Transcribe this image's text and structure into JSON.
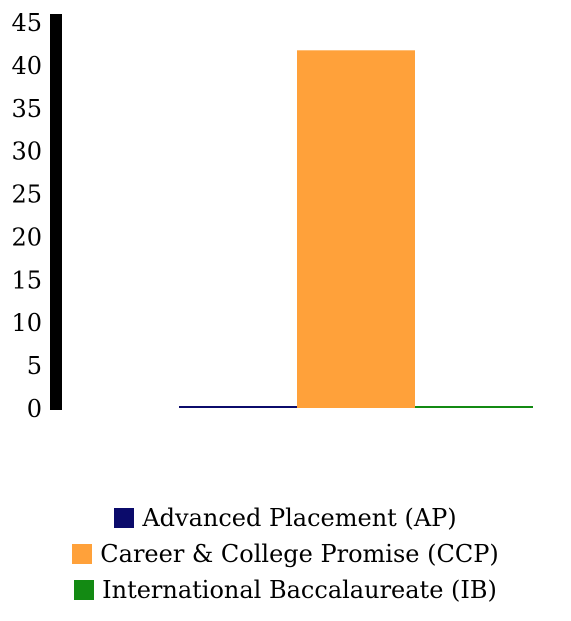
{
  "chart_data": {
    "type": "bar",
    "title": "",
    "xlabel": "",
    "ylabel": "",
    "ylim": [
      0,
      45
    ],
    "yticks": [
      "0",
      "5",
      "10",
      "15",
      "20",
      "25",
      "30",
      "35",
      "40",
      "45"
    ],
    "grid": false,
    "legend_position": "bottom",
    "series": [
      {
        "name": "Advanced Placement (AP)",
        "value": 0,
        "color": "#0b0b6b"
      },
      {
        "name": "Career & College Promise (CCP)",
        "value": 41.7,
        "color": "#ffa13a"
      },
      {
        "name": "International Baccalaureate (IB)",
        "value": 0,
        "color": "#138a13"
      }
    ]
  }
}
